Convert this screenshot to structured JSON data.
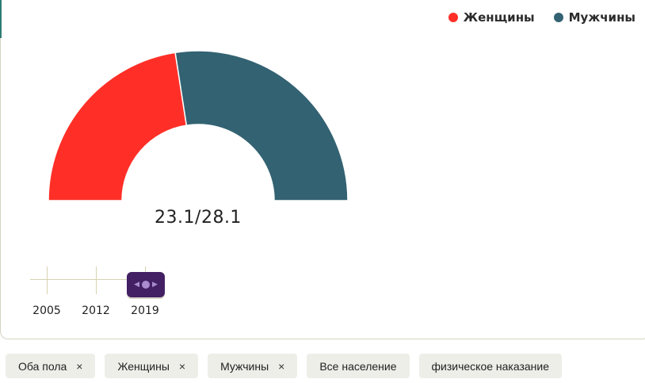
{
  "chart_data": {
    "type": "pie",
    "variant": "half-donut",
    "series": [
      {
        "name": "Женщины",
        "value": 23.1,
        "color": "#ff2f28"
      },
      {
        "name": "Мужчины",
        "value": 28.1,
        "color": "#336272"
      }
    ],
    "center_label": "23.1/28.1",
    "legend_position": "top-right"
  },
  "timeline": {
    "years": [
      "2005",
      "2012",
      "2019"
    ],
    "selected": "2019",
    "accent": "#432063"
  },
  "filters": [
    {
      "label": "Оба пола",
      "removable": true
    },
    {
      "label": "Женщины",
      "removable": true
    },
    {
      "label": "Мужчины",
      "removable": true
    },
    {
      "label": "Все население",
      "removable": false
    },
    {
      "label": "физическое наказание",
      "removable": false
    }
  ],
  "remove_glyph": "×"
}
